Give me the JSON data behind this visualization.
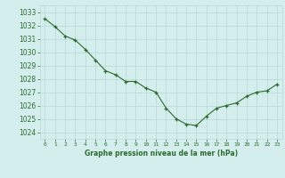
{
  "hours": [
    0,
    1,
    2,
    3,
    4,
    5,
    6,
    7,
    8,
    9,
    10,
    11,
    12,
    13,
    14,
    15,
    16,
    17,
    18,
    19,
    20,
    21,
    22,
    23
  ],
  "pressure": [
    1032.5,
    1031.9,
    1031.2,
    1030.9,
    1030.2,
    1029.4,
    1028.6,
    1028.3,
    1027.8,
    1027.8,
    1027.3,
    1027.0,
    1025.8,
    1025.0,
    1024.6,
    1024.5,
    1025.2,
    1025.8,
    1026.0,
    1026.2,
    1026.7,
    1027.0,
    1027.1,
    1027.6
  ],
  "line_color": "#2d6a2d",
  "marker_color": "#2d6a2d",
  "bg_color": "#d4eeee",
  "grid_color": "#b8d8d8",
  "xlabel": "Graphe pression niveau de la mer (hPa)",
  "xlabel_color": "#2d6a2d",
  "tick_color": "#2d6a2d",
  "ylim": [
    1023.5,
    1033.5
  ],
  "yticks": [
    1024,
    1025,
    1026,
    1027,
    1028,
    1029,
    1030,
    1031,
    1032,
    1033
  ],
  "xlim": [
    -0.5,
    23.5
  ]
}
